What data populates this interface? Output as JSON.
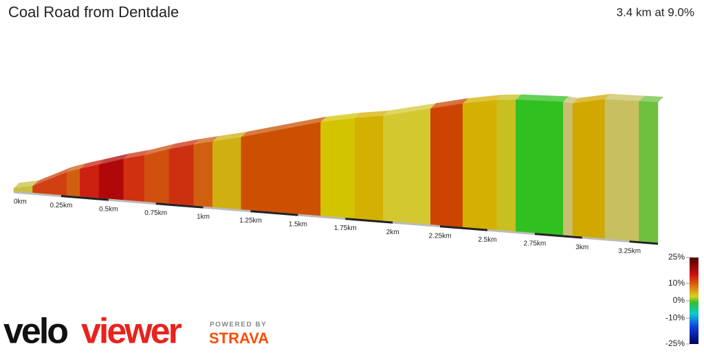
{
  "chart_data": {
    "type": "elevation-profile",
    "title": "Coal Road from Dentdale",
    "subtitle": "3.4 km at 9.0%",
    "xlim": [
      0,
      3.4
    ],
    "ylim": [
      0,
      308
    ],
    "x": [
      0,
      0.1,
      0.28,
      0.35,
      0.45,
      0.58,
      0.69,
      0.82,
      0.95,
      1.05,
      1.2,
      1.62,
      1.8,
      1.95,
      2.2,
      2.37,
      2.55,
      2.65,
      2.9,
      2.95,
      3.12,
      3.3,
      3.4
    ],
    "values": [
      0,
      8,
      45,
      55,
      68,
      85,
      97,
      115,
      130,
      140,
      155,
      203,
      218,
      228,
      253,
      270,
      284,
      288,
      292,
      290,
      305,
      307,
      308
    ],
    "segment_colors": [
      "#c8c040",
      "#d04010",
      "#d06010",
      "#cc2010",
      "#b00808",
      "#d03010",
      "#d05010",
      "#cc3010",
      "#d06010",
      "#d0b010",
      "#cc5000",
      "#d4c400",
      "#d4b000",
      "#d4c830",
      "#cc4400",
      "#d4b000",
      "#c8c020",
      "#30c020",
      "#c8c070",
      "#d0a800",
      "#c8c060",
      "#70c040"
    ],
    "xticks": [
      {
        "value": 0,
        "label": "0km"
      },
      {
        "value": 0.25,
        "label": "0.25km"
      },
      {
        "value": 0.5,
        "label": "0.5km"
      },
      {
        "value": 0.75,
        "label": "0.75km"
      },
      {
        "value": 1,
        "label": "1km"
      },
      {
        "value": 1.25,
        "label": "1.25km"
      },
      {
        "value": 1.5,
        "label": "1.5km"
      },
      {
        "value": 1.75,
        "label": "1.75km"
      },
      {
        "value": 2,
        "label": "2km"
      },
      {
        "value": 2.25,
        "label": "2.25km"
      },
      {
        "value": 2.5,
        "label": "2.5km"
      },
      {
        "value": 2.75,
        "label": "2.75km"
      },
      {
        "value": 3,
        "label": "3km"
      },
      {
        "value": 3.25,
        "label": "3.25km"
      }
    ],
    "colorbar": {
      "lim": [
        -25,
        25
      ],
      "ticks": [
        {
          "value": 25,
          "label": "25%"
        },
        {
          "value": 10,
          "label": "10%"
        },
        {
          "value": 0,
          "label": "0%"
        },
        {
          "value": -10,
          "label": "-10%"
        },
        {
          "value": -25,
          "label": "-25%"
        }
      ]
    },
    "brand": {
      "logo_a": "velo",
      "logo_b": "viewer",
      "powered": "POWERED BY",
      "strava": "STRAVA"
    }
  }
}
